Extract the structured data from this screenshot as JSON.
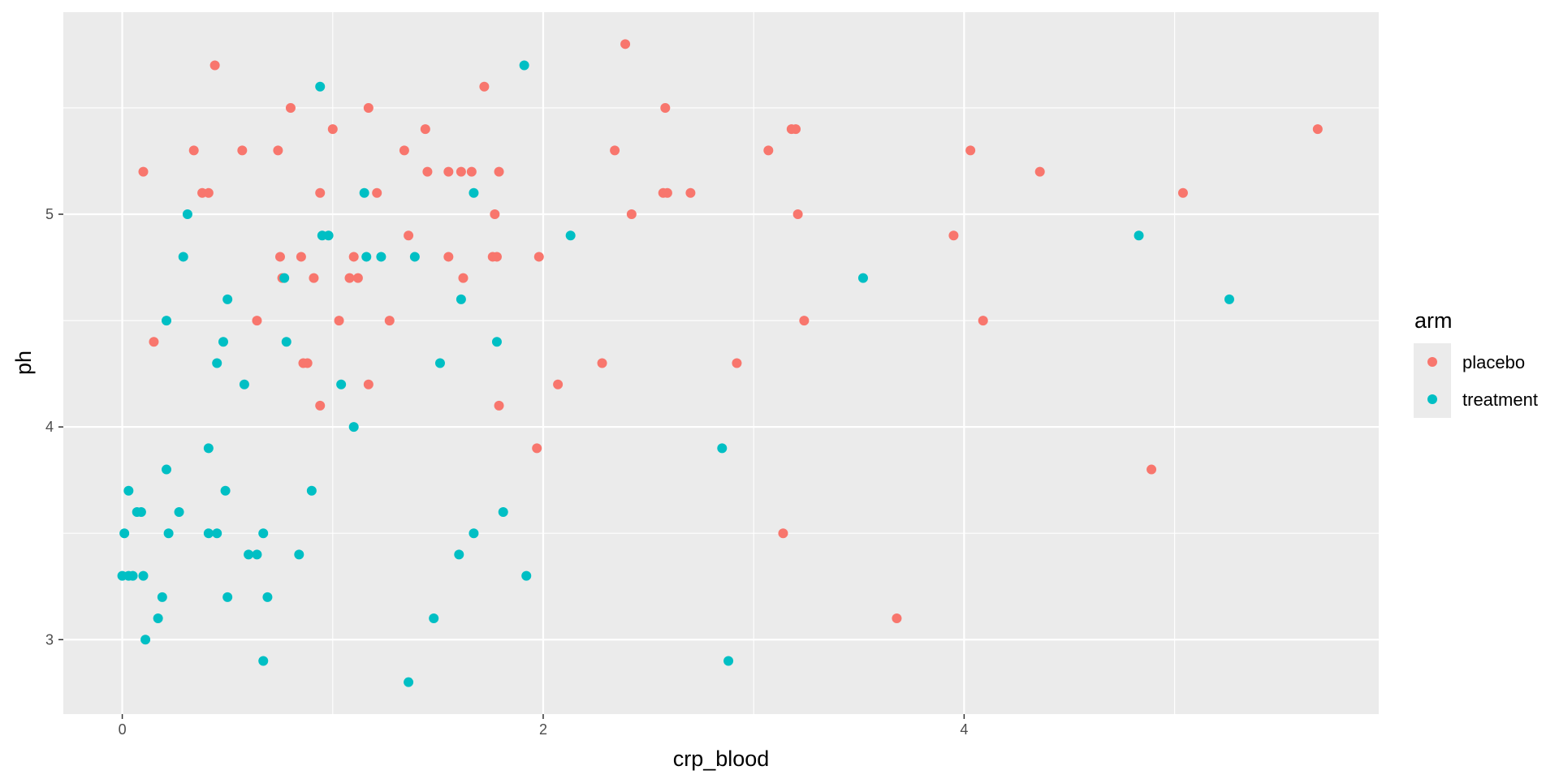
{
  "chart_data": {
    "type": "scatter",
    "xlabel": "crp_blood",
    "ylabel": "ph",
    "xlim": [
      -0.28,
      5.97
    ],
    "ylim": [
      2.65,
      5.95
    ],
    "x_ticks": [
      0,
      2,
      4
    ],
    "x_tick_labels": [
      "0",
      "2",
      "4"
    ],
    "y_ticks": [
      3,
      4,
      5
    ],
    "y_tick_labels": [
      "3",
      "4",
      "5"
    ],
    "grid": true,
    "panel_background": "#ebebeb",
    "grid_color": "#ffffff",
    "legend": {
      "title": "arm",
      "position": "right",
      "entries": [
        {
          "label": "placebo",
          "color": "#f8766d"
        },
        {
          "label": "treatment",
          "color": "#00bfc4"
        }
      ]
    },
    "series": [
      {
        "name": "placebo",
        "color": "#f8766d",
        "points": [
          [
            0.1,
            5.2
          ],
          [
            0.15,
            4.4
          ],
          [
            0.34,
            5.3
          ],
          [
            0.38,
            5.1
          ],
          [
            0.41,
            5.1
          ],
          [
            0.44,
            5.7
          ],
          [
            0.57,
            5.3
          ],
          [
            0.64,
            4.5
          ],
          [
            0.74,
            5.3
          ],
          [
            0.75,
            4.8
          ],
          [
            0.76,
            4.7
          ],
          [
            0.8,
            5.5
          ],
          [
            0.85,
            4.8
          ],
          [
            0.86,
            4.3
          ],
          [
            0.88,
            4.3
          ],
          [
            0.91,
            4.7
          ],
          [
            0.94,
            5.1
          ],
          [
            0.94,
            4.1
          ],
          [
            1.0,
            5.4
          ],
          [
            1.03,
            4.5
          ],
          [
            1.08,
            4.7
          ],
          [
            1.1,
            4.8
          ],
          [
            1.12,
            4.7
          ],
          [
            1.17,
            5.5
          ],
          [
            1.17,
            4.2
          ],
          [
            1.21,
            5.1
          ],
          [
            1.27,
            4.5
          ],
          [
            1.34,
            5.3
          ],
          [
            1.36,
            4.9
          ],
          [
            1.44,
            5.4
          ],
          [
            1.45,
            5.2
          ],
          [
            1.55,
            5.2
          ],
          [
            1.55,
            4.8
          ],
          [
            1.61,
            5.2
          ],
          [
            1.62,
            4.7
          ],
          [
            1.66,
            5.2
          ],
          [
            1.72,
            5.6
          ],
          [
            1.76,
            4.8
          ],
          [
            1.77,
            5.0
          ],
          [
            1.78,
            4.8
          ],
          [
            1.79,
            5.2
          ],
          [
            1.79,
            4.1
          ],
          [
            1.97,
            3.9
          ],
          [
            1.98,
            4.8
          ],
          [
            2.07,
            4.2
          ],
          [
            2.28,
            4.3
          ],
          [
            2.34,
            5.3
          ],
          [
            2.39,
            5.8
          ],
          [
            2.42,
            5.0
          ],
          [
            2.57,
            5.1
          ],
          [
            2.58,
            5.5
          ],
          [
            2.59,
            5.1
          ],
          [
            2.7,
            5.1
          ],
          [
            2.92,
            4.3
          ],
          [
            3.07,
            5.3
          ],
          [
            3.14,
            3.5
          ],
          [
            3.18,
            5.4
          ],
          [
            3.2,
            5.4
          ],
          [
            3.21,
            5.0
          ],
          [
            3.24,
            4.5
          ],
          [
            3.68,
            3.1
          ],
          [
            3.95,
            4.9
          ],
          [
            4.03,
            5.3
          ],
          [
            4.09,
            4.5
          ],
          [
            4.36,
            5.2
          ],
          [
            4.89,
            3.8
          ],
          [
            5.04,
            5.1
          ],
          [
            5.68,
            5.4
          ]
        ]
      },
      {
        "name": "treatment",
        "color": "#00bfc4",
        "points": [
          [
            0.0,
            3.3
          ],
          [
            0.01,
            3.5
          ],
          [
            0.03,
            3.3
          ],
          [
            0.03,
            3.7
          ],
          [
            0.05,
            3.3
          ],
          [
            0.07,
            3.6
          ],
          [
            0.09,
            3.6
          ],
          [
            0.1,
            3.3
          ],
          [
            0.11,
            3.0
          ],
          [
            0.17,
            3.1
          ],
          [
            0.19,
            3.2
          ],
          [
            0.21,
            4.5
          ],
          [
            0.21,
            3.8
          ],
          [
            0.22,
            3.5
          ],
          [
            0.27,
            3.6
          ],
          [
            0.29,
            4.8
          ],
          [
            0.31,
            5.0
          ],
          [
            0.41,
            3.9
          ],
          [
            0.41,
            3.5
          ],
          [
            0.45,
            4.3
          ],
          [
            0.45,
            3.5
          ],
          [
            0.48,
            4.4
          ],
          [
            0.49,
            3.7
          ],
          [
            0.5,
            4.6
          ],
          [
            0.5,
            3.2
          ],
          [
            0.58,
            4.2
          ],
          [
            0.6,
            3.4
          ],
          [
            0.64,
            3.4
          ],
          [
            0.67,
            3.5
          ],
          [
            0.67,
            2.9
          ],
          [
            0.69,
            3.2
          ],
          [
            0.77,
            4.7
          ],
          [
            0.78,
            4.4
          ],
          [
            0.84,
            3.4
          ],
          [
            0.9,
            3.7
          ],
          [
            0.94,
            5.6
          ],
          [
            0.95,
            4.9
          ],
          [
            0.98,
            4.9
          ],
          [
            1.04,
            4.2
          ],
          [
            1.1,
            4.0
          ],
          [
            1.15,
            5.1
          ],
          [
            1.16,
            4.8
          ],
          [
            1.23,
            4.8
          ],
          [
            1.36,
            2.8
          ],
          [
            1.39,
            4.8
          ],
          [
            1.48,
            3.1
          ],
          [
            1.51,
            4.3
          ],
          [
            1.6,
            3.4
          ],
          [
            1.61,
            4.6
          ],
          [
            1.67,
            5.1
          ],
          [
            1.67,
            3.5
          ],
          [
            1.78,
            4.4
          ],
          [
            1.81,
            3.6
          ],
          [
            1.91,
            5.7
          ],
          [
            1.92,
            3.3
          ],
          [
            2.13,
            4.9
          ],
          [
            2.85,
            3.9
          ],
          [
            2.88,
            2.9
          ],
          [
            3.52,
            4.7
          ],
          [
            4.83,
            4.9
          ],
          [
            5.26,
            4.6
          ]
        ]
      }
    ]
  }
}
